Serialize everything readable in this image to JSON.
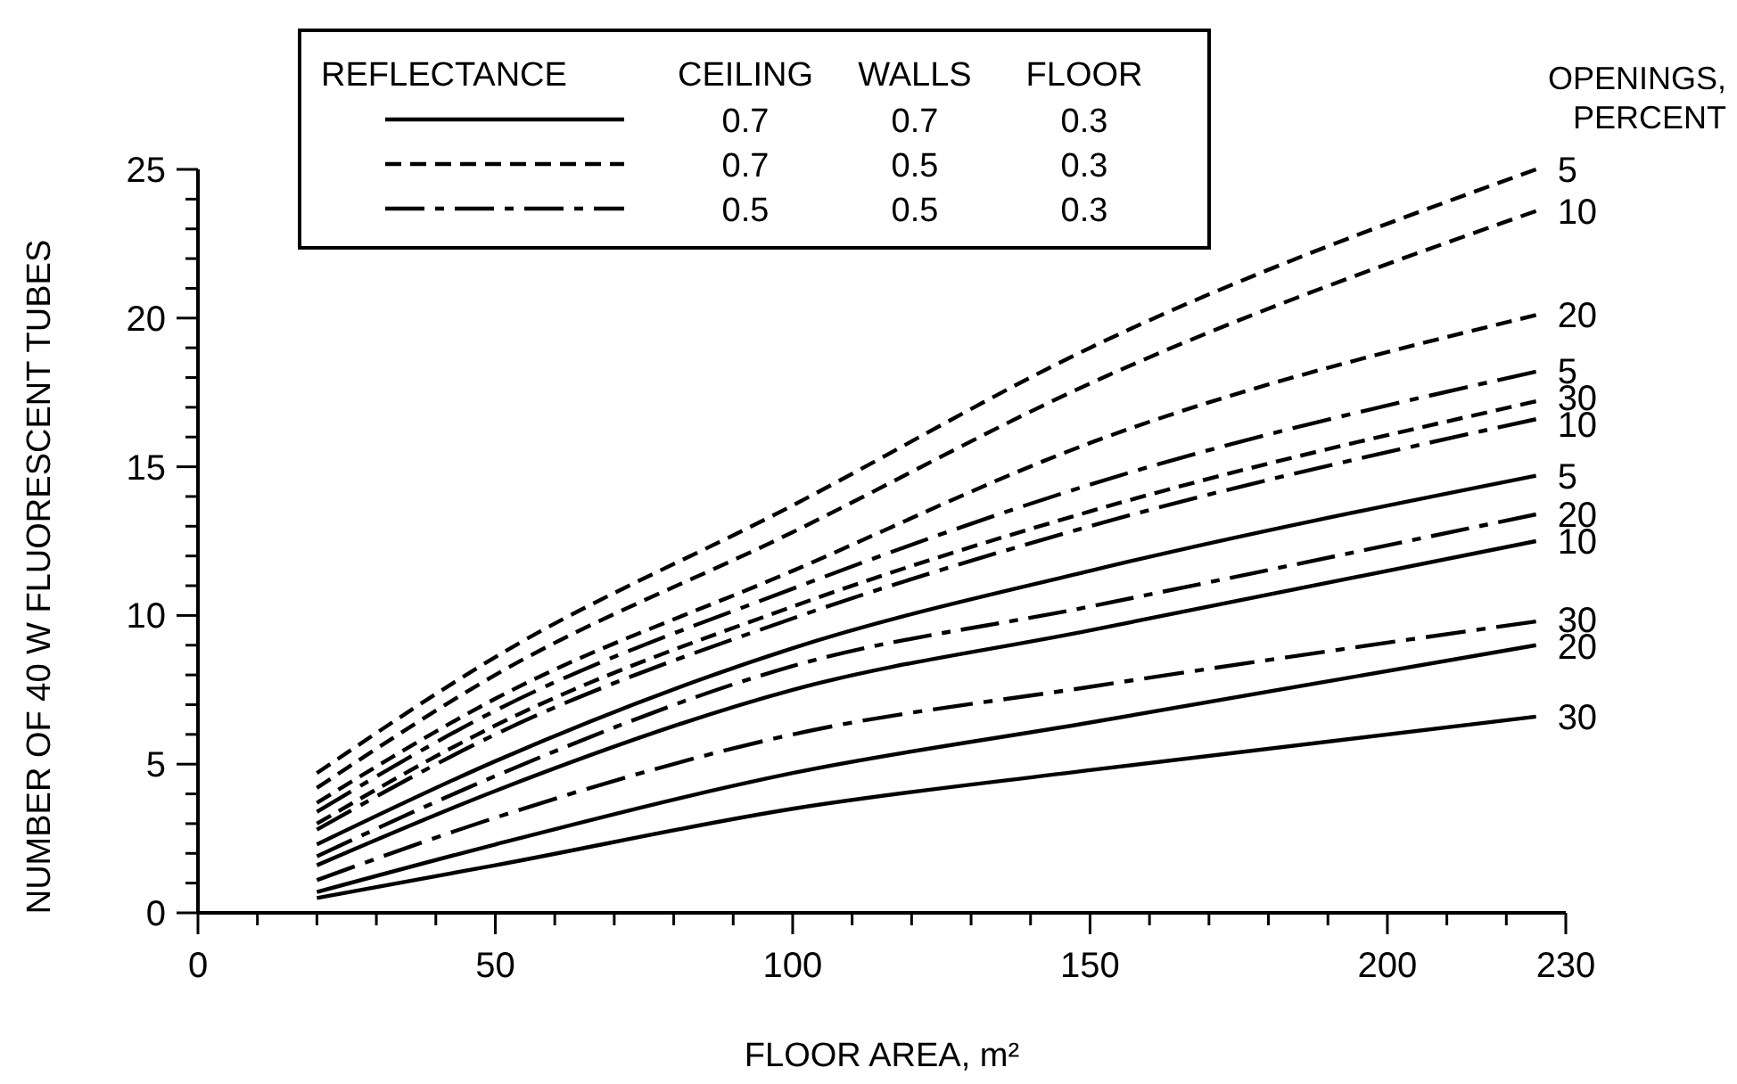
{
  "chart_data": {
    "type": "line",
    "xlabel": "FLOOR AREA, m²",
    "ylabel": "NUMBER OF 40 W FLUORESCENT TUBES",
    "legend_title": "REFLECTANCE",
    "legend": "right",
    "annotations": [
      "OPENINGS, PERCENT",
      "CEILING",
      "WALLS",
      "FLOOR",
      "0.7",
      "0.7",
      "0.3",
      "0.7",
      "0.5",
      "0.3",
      "0.5",
      "0.5",
      "0.3"
    ],
    "x": [
      20,
      50,
      100,
      150,
      225
    ],
    "xlim": [
      0,
      230
    ],
    "ylim": [
      0,
      25
    ],
    "xticks": [
      0,
      {
        "value": 10,
        "label": null
      },
      {
        "value": 20,
        "label": null
      },
      {
        "value": 30,
        "label": null
      },
      {
        "value": 40,
        "label": null
      },
      50,
      {
        "value": 60,
        "label": null
      },
      {
        "value": 70,
        "label": null
      },
      {
        "value": 80,
        "label": null
      },
      {
        "value": 90,
        "label": null
      },
      100,
      {
        "value": 110,
        "label": null
      },
      {
        "value": 120,
        "label": null
      },
      {
        "value": 130,
        "label": null
      },
      {
        "value": 140,
        "label": null
      },
      150,
      {
        "value": 160,
        "label": null
      },
      {
        "value": 170,
        "label": null
      },
      {
        "value": 180,
        "label": null
      },
      {
        "value": 190,
        "label": null
      },
      200,
      {
        "value": 210,
        "label": null
      },
      {
        "value": 220,
        "label": null
      },
      230
    ],
    "yticks": [
      0,
      {
        "value": 1,
        "label": null
      },
      {
        "value": 2,
        "label": null
      },
      {
        "value": 3,
        "label": null
      },
      {
        "value": 4,
        "label": null
      },
      5,
      {
        "value": 6,
        "label": null
      },
      {
        "value": 7,
        "label": null
      },
      {
        "value": 8,
        "label": null
      },
      {
        "value": 9,
        "label": null
      },
      10,
      {
        "value": 11,
        "label": null
      },
      {
        "value": 12,
        "label": null
      },
      {
        "value": 13,
        "label": null
      },
      {
        "value": 14,
        "label": null
      },
      15,
      {
        "value": 16,
        "label": null
      },
      {
        "value": 17,
        "label": null
      },
      {
        "value": 18,
        "label": null
      },
      {
        "value": 19,
        "label": null
      },
      20,
      {
        "value": 21,
        "label": null
      },
      {
        "value": 22,
        "label": null
      },
      {
        "value": 23,
        "label": null
      },
      {
        "value": 24,
        "label": null
      },
      25
    ],
    "grid": false,
    "marker": "none",
    "series": [
      {
        "name": "5",
        "color": "#000000",
        "line_style": "solid",
        "values": [
          2.3,
          5.1,
          8.9,
          11.5,
          14.7
        ]
      },
      {
        "name": "10",
        "color": "#000000",
        "line_style": "solid",
        "values": [
          1.6,
          4.1,
          7.5,
          9.5,
          12.5
        ]
      },
      {
        "name": "20",
        "color": "#000000",
        "line_style": "solid",
        "values": [
          0.7,
          2.3,
          4.7,
          6.4,
          9.0
        ]
      },
      {
        "name": "30",
        "color": "#000000",
        "line_style": "solid",
        "values": [
          0.5,
          1.6,
          3.5,
          4.8,
          6.6
        ]
      },
      {
        "name": "5",
        "color": "#000000",
        "line_style": "dashed",
        "values": [
          4.7,
          8.6,
          13.7,
          19.0,
          25.0
        ]
      },
      {
        "name": "10",
        "color": "#000000",
        "line_style": "dashed",
        "values": [
          4.2,
          8.0,
          12.8,
          17.8,
          23.6
        ]
      },
      {
        "name": "20",
        "color": "#000000",
        "line_style": "dashed",
        "values": [
          3.7,
          7.2,
          11.5,
          15.8,
          20.1
        ]
      },
      {
        "name": "30",
        "color": "#000000",
        "line_style": "dashed",
        "values": [
          3.0,
          6.3,
          10.3,
          13.5,
          17.2
        ]
      },
      {
        "name": "5",
        "color": "#000000",
        "line_style": "dashdot",
        "values": [
          3.4,
          6.8,
          10.9,
          14.4,
          18.2
        ]
      },
      {
        "name": "10",
        "color": "#000000",
        "line_style": "dashdot",
        "values": [
          2.8,
          6.0,
          9.9,
          13.0,
          16.6
        ]
      },
      {
        "name": "20",
        "color": "#000000",
        "line_style": "dashdot",
        "values": [
          1.9,
          4.6,
          8.3,
          10.3,
          13.4
        ]
      },
      {
        "name": "30",
        "color": "#000000",
        "line_style": "dashdot",
        "values": [
          1.1,
          3.2,
          6.0,
          7.6,
          9.8
        ]
      }
    ]
  }
}
